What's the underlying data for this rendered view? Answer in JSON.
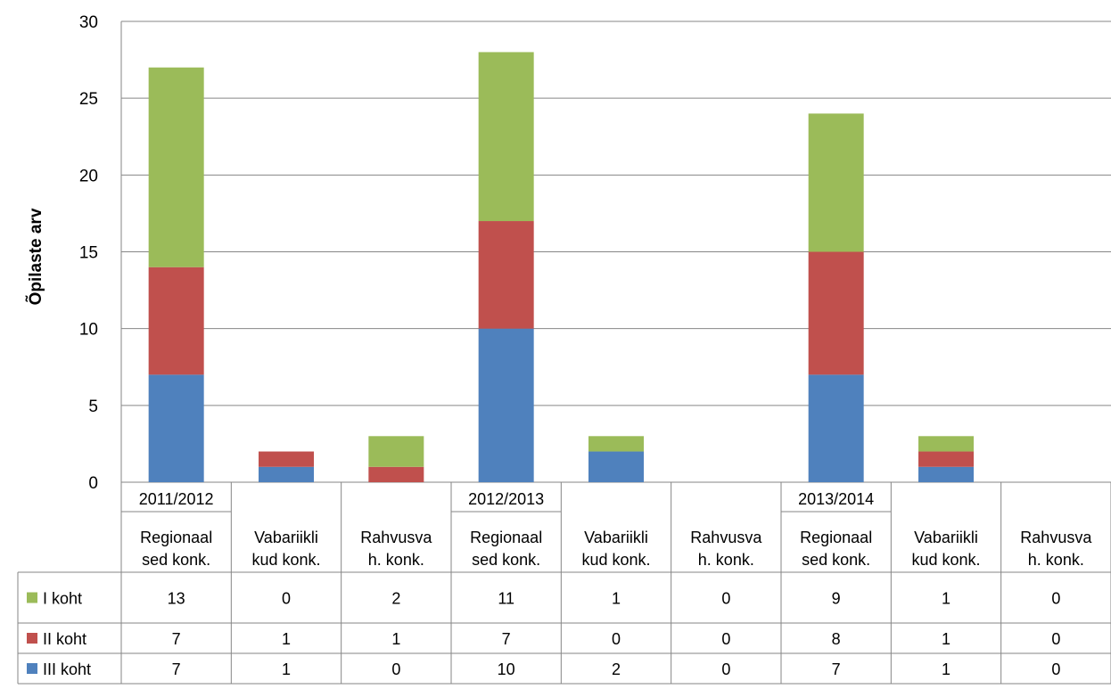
{
  "chart_data": {
    "type": "bar",
    "stacked": true,
    "ylabel": "Õpilaste arv",
    "ylim": [
      0,
      30
    ],
    "yticks": [
      "0",
      "5",
      "10",
      "15",
      "20",
      "25",
      "30"
    ],
    "grid": true,
    "legend": "data-table",
    "groups": [
      "2011/2012",
      "2012/2013",
      "2013/2014"
    ],
    "categories": [
      {
        "group": "2011/2012",
        "line1": "Regionaal",
        "line2": "sed konk."
      },
      {
        "group": "",
        "line1": "Vabariikli",
        "line2": "kud konk."
      },
      {
        "group": "",
        "line1": "Rahvusva",
        "line2": "h. konk."
      },
      {
        "group": "2012/2013",
        "line1": "Regionaal",
        "line2": "sed konk."
      },
      {
        "group": "",
        "line1": "Vabariikli",
        "line2": "kud konk."
      },
      {
        "group": "",
        "line1": "Rahvusva",
        "line2": "h. konk."
      },
      {
        "group": "2013/2014",
        "line1": "Regionaal",
        "line2": "sed konk."
      },
      {
        "group": "",
        "line1": "Vabariikli",
        "line2": "kud konk."
      },
      {
        "group": "",
        "line1": "Rahvusva",
        "line2": "h. konk."
      }
    ],
    "series": [
      {
        "name": "I koht",
        "color": "#9BBB59",
        "values": [
          13,
          0,
          2,
          11,
          1,
          0,
          9,
          1,
          0
        ]
      },
      {
        "name": "II koht",
        "color": "#C0504D",
        "values": [
          7,
          1,
          1,
          7,
          0,
          0,
          8,
          1,
          0
        ]
      },
      {
        "name": "III koht",
        "color": "#4F81BD",
        "values": [
          7,
          1,
          0,
          10,
          2,
          0,
          7,
          1,
          0
        ]
      }
    ]
  }
}
